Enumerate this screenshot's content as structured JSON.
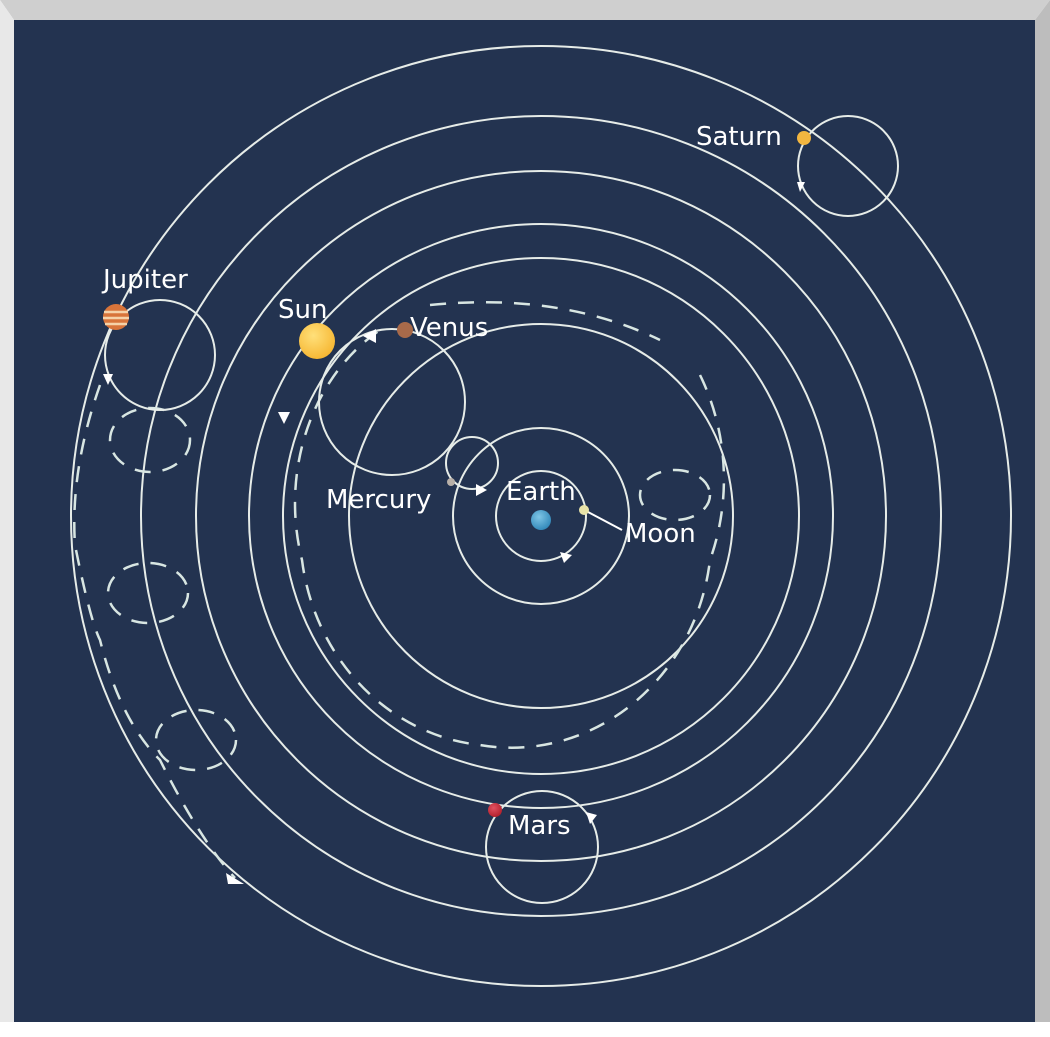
{
  "diagram": {
    "background_color": "#233350",
    "bodies": {
      "earth": {
        "label": "Earth",
        "color": "#2f86b8"
      },
      "moon": {
        "label": "Moon",
        "color": "#e8e3a8"
      },
      "mercury": {
        "label": "Mercury",
        "color": "#b8b0a8"
      },
      "venus": {
        "label": "Venus",
        "color": "#a86a4a"
      },
      "sun": {
        "label": "Sun",
        "color": "#f6b530"
      },
      "mars": {
        "label": "Mars",
        "color": "#b01e2a"
      },
      "jupiter": {
        "label": "Jupiter",
        "color": "#d8743a"
      },
      "saturn": {
        "label": "Saturn",
        "color": "#f2b640"
      }
    }
  }
}
